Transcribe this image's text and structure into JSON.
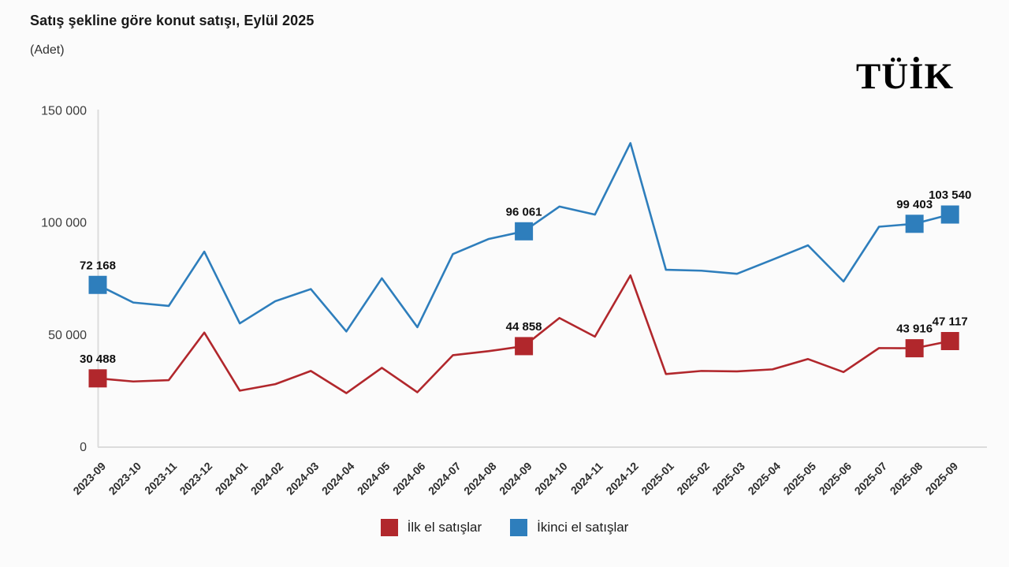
{
  "header": {
    "title": "Satış şekline göre konut satışı, Eylül 2025",
    "subtitle": "(Adet)",
    "logo": "TÜİK"
  },
  "colors": {
    "first_hand": "#B1272C",
    "second_hand": "#2E7EBC",
    "axis_line": "#DCDCDC",
    "tick_text": "#3C3C3C",
    "x_tick_text": "#2D2D2D",
    "data_label_text": "#0F0F0F",
    "background": "#FBFBFB"
  },
  "chart_data": {
    "type": "line",
    "title": "Satış şekline göre konut satışı, Eylül 2025",
    "subtitle": "(Adet)",
    "xlabel": "",
    "ylabel": "Adet",
    "ylim": [
      0,
      150000
    ],
    "grid": false,
    "legend_position": "bottom",
    "marker": "square",
    "categories": [
      "2023-09",
      "2023-10",
      "2023-11",
      "2023-12",
      "2024-01",
      "2024-02",
      "2024-03",
      "2024-04",
      "2024-05",
      "2024-06",
      "2024-07",
      "2024-08",
      "2024-09",
      "2024-10",
      "2024-11",
      "2024-12",
      "2025-01",
      "2025-02",
      "2025-03",
      "2025-04",
      "2025-05",
      "2025-06",
      "2025-07",
      "2025-08",
      "2025-09"
    ],
    "yticks": [
      {
        "value": 0,
        "label": "0"
      },
      {
        "value": 50000,
        "label": "50 000"
      },
      {
        "value": 100000,
        "label": "100 000"
      },
      {
        "value": 150000,
        "label": "150 000"
      }
    ],
    "series": [
      {
        "name": "İlk el satışlar",
        "color": "#B1272C",
        "values": [
          30488,
          29100,
          29700,
          50900,
          25000,
          27900,
          33800,
          23900,
          35200,
          24300,
          40800,
          42600,
          44858,
          57400,
          49100,
          76400,
          32400,
          33800,
          33600,
          34500,
          39100,
          33300,
          44000,
          43916,
          47117
        ]
      },
      {
        "name": "İkinci el satışlar",
        "color": "#2E7EBC",
        "values": [
          72168,
          64300,
          62800,
          87000,
          55000,
          64900,
          70300,
          51400,
          75100,
          53300,
          85900,
          92600,
          96061,
          107100,
          103500,
          135400,
          78900,
          78500,
          77100,
          83400,
          89800,
          73700,
          98100,
          99403,
          103540
        ]
      }
    ],
    "labeled_points": [
      {
        "series": 1,
        "index": 0,
        "label": "72 168"
      },
      {
        "series": 0,
        "index": 0,
        "label": "30 488"
      },
      {
        "series": 1,
        "index": 12,
        "label": "96 061"
      },
      {
        "series": 0,
        "index": 12,
        "label": "44 858"
      },
      {
        "series": 1,
        "index": 23,
        "label": "99 403"
      },
      {
        "series": 0,
        "index": 23,
        "label": "43 916"
      },
      {
        "series": 1,
        "index": 24,
        "label": "103 540"
      },
      {
        "series": 0,
        "index": 24,
        "label": "47 117"
      }
    ]
  },
  "legend": {
    "items": [
      {
        "label": "İlk el satışlar",
        "color": "#B1272C"
      },
      {
        "label": "İkinci el satışlar",
        "color": "#2E7EBC"
      }
    ]
  }
}
